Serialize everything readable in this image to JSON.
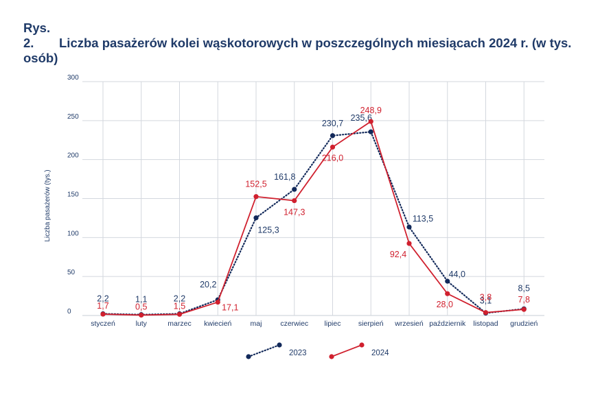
{
  "title": {
    "number": "Rys. 2.",
    "text": "Liczba pasażerów kolei wąskotorowych w poszczególnych miesiącach 2024 r. (w tys. osób)"
  },
  "chart_data": {
    "type": "line",
    "title": "Rys. 2. Liczba pasażerów kolei wąskotorowych w poszczególnych miesiącach 2024 r. (w tys. osób)",
    "xlabel": "",
    "ylabel": "Liczba pasażerów (tys.)",
    "ylim": [
      0,
      300
    ],
    "yticks": [
      0,
      50,
      100,
      150,
      200,
      250,
      300
    ],
    "grid": true,
    "legend": "bottom",
    "categories": [
      "styczeń",
      "luty",
      "marzec",
      "kwiecień",
      "maj",
      "czerwiec",
      "lipiec",
      "sierpień",
      "wrzesień",
      "październik",
      "listopad",
      "grudzień"
    ],
    "series": [
      {
        "name": "2023",
        "color": "#12295a",
        "style": "dotted",
        "values": [
          2.2,
          1.1,
          2.2,
          20.2,
          125.3,
          161.8,
          230.7,
          235.6,
          113.5,
          44.0,
          3.1,
          8.5
        ],
        "labels": [
          "2,2",
          "1,1",
          "2,2",
          "20,2",
          "125,3",
          "161,8",
          "230,7",
          "235,6",
          "113,5",
          "44,0",
          "3,1",
          "8,5"
        ]
      },
      {
        "name": "2024",
        "color": "#d0202e",
        "style": "solid",
        "values": [
          1.7,
          0.5,
          1.5,
          17.1,
          152.5,
          147.3,
          216.0,
          248.9,
          92.4,
          28.0,
          3.8,
          7.8
        ],
        "labels": [
          "1,7",
          "0,5",
          "1,5",
          "17,1",
          "152,5",
          "147,3",
          "216,0",
          "248,9",
          "92,4",
          "28,0",
          "3,8",
          "7,8"
        ]
      }
    ]
  }
}
